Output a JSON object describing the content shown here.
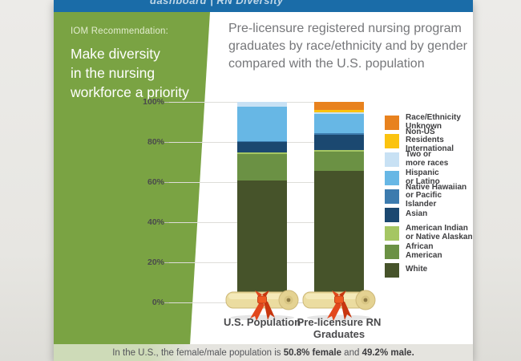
{
  "header": {
    "clipped_text": "dashboard | RN Diversity"
  },
  "sidebar": {
    "kicker": "IOM Recommendation:",
    "recommendation": "Make diversity\nin the nursing\nworkforce a priority"
  },
  "title": "Pre-licensure registered nursing program graduates by race/ethnicity and by gender compared with the U.S. population",
  "chart_data": {
    "type": "bar",
    "stacked": true,
    "categories": [
      "U.S. Population",
      "Pre-licensure RN\nGraduates"
    ],
    "ylabel": "",
    "xlabel": "",
    "ylim": [
      0,
      100
    ],
    "y_ticks": [
      "100%",
      "80%",
      "60%",
      "40%",
      "20%",
      "0%"
    ],
    "grid": true,
    "legend_position": "right",
    "series": [
      {
        "name": "White",
        "color": "#46532A",
        "values": [
          61.0,
          65.5
        ]
      },
      {
        "name": "African American",
        "color": "#6B9144",
        "values": [
          13.0,
          9.8
        ]
      },
      {
        "name": "American Indian or Native Alaskan",
        "color": "#A5C663",
        "values": [
          1.0,
          0.7
        ]
      },
      {
        "name": "Asian",
        "color": "#1B4870",
        "values": [
          5.4,
          7.5
        ]
      },
      {
        "name": "Native Hawaiian or Pacific Islander",
        "color": "#3C7BAE",
        "values": [
          0.2,
          1.0
        ]
      },
      {
        "name": "Hispanic or Latino",
        "color": "#67B7E5",
        "values": [
          17.2,
          9.5
        ]
      },
      {
        "name": "Two or more races",
        "color": "#C8E1F4",
        "values": [
          2.2,
          1.0
        ]
      },
      {
        "name": "Non-US Residents International",
        "color": "#FBC30F",
        "values": [
          0.0,
          1.0
        ]
      },
      {
        "name": "Race/Ethnicity Unknown",
        "color": "#E8821E",
        "values": [
          0.0,
          4.0
        ]
      }
    ],
    "legend": [
      {
        "lines": "Race/Ethnicity\nUnknown",
        "color": "#E8821E"
      },
      {
        "lines": "Non-US Residents\nInternational",
        "color": "#FBC30F"
      },
      {
        "lines": "Two or\nmore races",
        "color": "#C8E1F4"
      },
      {
        "lines": "Hispanic\nor Latino",
        "color": "#67B7E5"
      },
      {
        "lines": "Native Hawaiian\nor Pacific Islander",
        "color": "#3C7BAE"
      },
      {
        "lines": "Asian",
        "color": "#1B4870"
      },
      {
        "lines": "American Indian\nor Native Alaskan",
        "color": "#A5C663"
      },
      {
        "lines": "African\nAmerican",
        "color": "#6B9144"
      },
      {
        "lines": "White",
        "color": "#46532A"
      }
    ]
  },
  "footer": {
    "prefix": "In the U.S., the female/male population is ",
    "female_bold": "50.8% female",
    "middle": " and ",
    "male_bold": "49.2% male."
  },
  "colors": {
    "topbar_blue": "#1A6CA8",
    "panel_green": "#7AA343",
    "banner_green": "#CEDBB8",
    "banner_gray": "#E5E4DF",
    "ribbon_red": "#E2471D",
    "scroll_tan": "#EBDCA0"
  }
}
